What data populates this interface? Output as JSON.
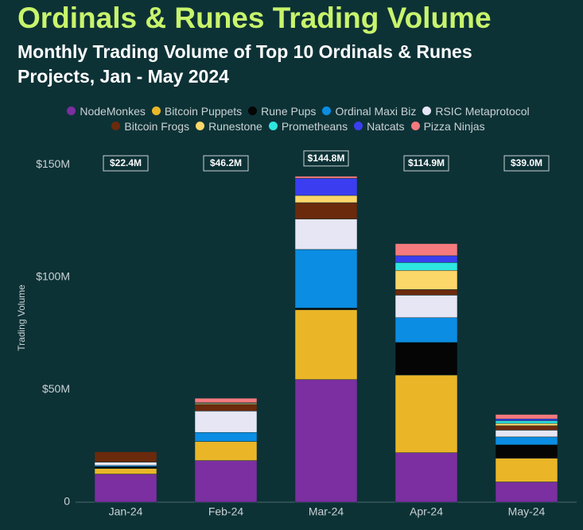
{
  "chart_data": {
    "type": "stacked-bar",
    "title": "Ordinals & Runes Trading Volume",
    "subtitle": "Monthly Trading Volume of Top 10 Ordinals & Runes Projects, Jan - May 2024",
    "y_label": "Trading Volume",
    "categories": [
      "Jan-24",
      "Feb-24",
      "Mar-24",
      "Apr-24",
      "May-24"
    ],
    "series": [
      {
        "name": "NodeMonkes",
        "color": "#7b2fa0",
        "values": [
          12.5,
          18.5,
          54.5,
          22,
          9
        ]
      },
      {
        "name": "Bitcoin Puppets",
        "color": "#eab628",
        "values": [
          2.5,
          8.5,
          31,
          34.5,
          10.5
        ]
      },
      {
        "name": "Rune Pups",
        "color": "#050505",
        "values": [
          0.8,
          0,
          0.8,
          14.5,
          6
        ]
      },
      {
        "name": "Ordinal Maxi Biz",
        "color": "#0b8de3",
        "values": [
          0.5,
          4,
          26,
          11,
          3.5
        ]
      },
      {
        "name": "RSIC Metaprotocol",
        "color": "#e6e6f5",
        "values": [
          1.5,
          9.5,
          13.5,
          10,
          3
        ]
      },
      {
        "name": "Bitcoin Frogs",
        "color": "#6b2a0c",
        "values": [
          4.6,
          3,
          7.3,
          2.5,
          2
        ]
      },
      {
        "name": "Runestone",
        "color": "#fbd76a",
        "values": [
          0,
          0.5,
          3.2,
          8.5,
          1
        ]
      },
      {
        "name": "Prometheans",
        "color": "#2ee6e0",
        "values": [
          0,
          0,
          0,
          3.5,
          1.2
        ]
      },
      {
        "name": "Natcats",
        "color": "#3b3ef0",
        "values": [
          0,
          0.2,
          7.6,
          3,
          0.8
        ]
      },
      {
        "name": "Pizza Ninjas",
        "color": "#f47a7e",
        "values": [
          0,
          2,
          0.9,
          5.4,
          2
        ]
      }
    ],
    "totals": {
      "values": [
        22.4,
        46.2,
        144.8,
        114.9,
        39.0
      ],
      "value_labels": [
        "$22.4M",
        "$46.2M",
        "$144.8M",
        "$114.9M",
        "$39.0M"
      ]
    },
    "ylim": [
      0,
      155
    ],
    "yticks": [
      0,
      {
        "value": 50,
        "label": "$50M"
      },
      {
        "value": 100,
        "label": "$100M"
      },
      {
        "value": 150,
        "label": "$150M"
      }
    ]
  }
}
